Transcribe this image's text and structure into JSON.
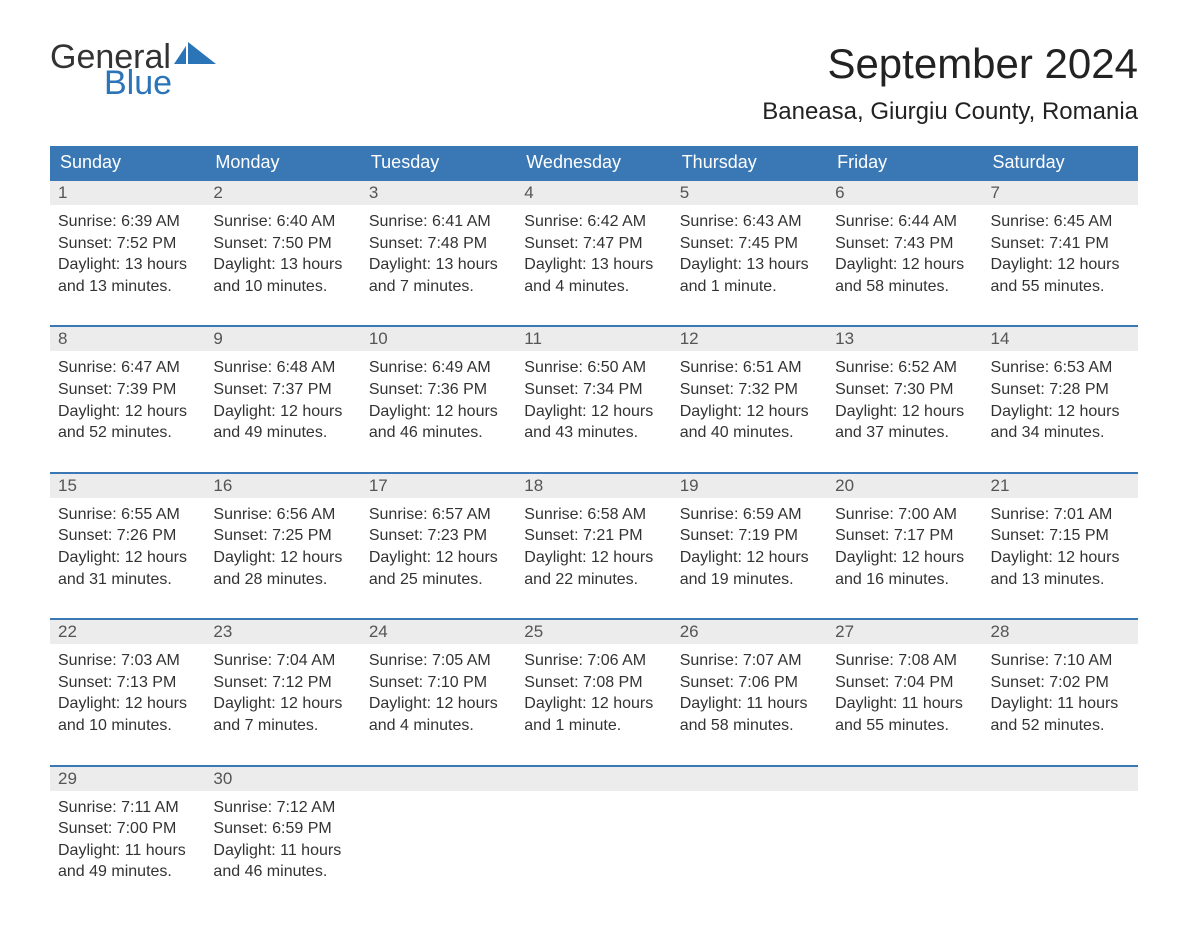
{
  "logo": {
    "word1": "General",
    "word2": "Blue",
    "flag_color": "#2b74b8"
  },
  "title": "September 2024",
  "location": "Baneasa, Giurgiu County, Romania",
  "colors": {
    "header_bg": "#3a78b5",
    "header_text": "#ffffff",
    "daynum_bg": "#ececec",
    "border": "#3a78b5"
  },
  "day_headers": [
    "Sunday",
    "Monday",
    "Tuesday",
    "Wednesday",
    "Thursday",
    "Friday",
    "Saturday"
  ],
  "weeks": [
    [
      {
        "n": "1",
        "sr": "Sunrise: 6:39 AM",
        "ss": "Sunset: 7:52 PM",
        "d1": "Daylight: 13 hours",
        "d2": "and 13 minutes."
      },
      {
        "n": "2",
        "sr": "Sunrise: 6:40 AM",
        "ss": "Sunset: 7:50 PM",
        "d1": "Daylight: 13 hours",
        "d2": "and 10 minutes."
      },
      {
        "n": "3",
        "sr": "Sunrise: 6:41 AM",
        "ss": "Sunset: 7:48 PM",
        "d1": "Daylight: 13 hours",
        "d2": "and 7 minutes."
      },
      {
        "n": "4",
        "sr": "Sunrise: 6:42 AM",
        "ss": "Sunset: 7:47 PM",
        "d1": "Daylight: 13 hours",
        "d2": "and 4 minutes."
      },
      {
        "n": "5",
        "sr": "Sunrise: 6:43 AM",
        "ss": "Sunset: 7:45 PM",
        "d1": "Daylight: 13 hours",
        "d2": "and 1 minute."
      },
      {
        "n": "6",
        "sr": "Sunrise: 6:44 AM",
        "ss": "Sunset: 7:43 PM",
        "d1": "Daylight: 12 hours",
        "d2": "and 58 minutes."
      },
      {
        "n": "7",
        "sr": "Sunrise: 6:45 AM",
        "ss": "Sunset: 7:41 PM",
        "d1": "Daylight: 12 hours",
        "d2": "and 55 minutes."
      }
    ],
    [
      {
        "n": "8",
        "sr": "Sunrise: 6:47 AM",
        "ss": "Sunset: 7:39 PM",
        "d1": "Daylight: 12 hours",
        "d2": "and 52 minutes."
      },
      {
        "n": "9",
        "sr": "Sunrise: 6:48 AM",
        "ss": "Sunset: 7:37 PM",
        "d1": "Daylight: 12 hours",
        "d2": "and 49 minutes."
      },
      {
        "n": "10",
        "sr": "Sunrise: 6:49 AM",
        "ss": "Sunset: 7:36 PM",
        "d1": "Daylight: 12 hours",
        "d2": "and 46 minutes."
      },
      {
        "n": "11",
        "sr": "Sunrise: 6:50 AM",
        "ss": "Sunset: 7:34 PM",
        "d1": "Daylight: 12 hours",
        "d2": "and 43 minutes."
      },
      {
        "n": "12",
        "sr": "Sunrise: 6:51 AM",
        "ss": "Sunset: 7:32 PM",
        "d1": "Daylight: 12 hours",
        "d2": "and 40 minutes."
      },
      {
        "n": "13",
        "sr": "Sunrise: 6:52 AM",
        "ss": "Sunset: 7:30 PM",
        "d1": "Daylight: 12 hours",
        "d2": "and 37 minutes."
      },
      {
        "n": "14",
        "sr": "Sunrise: 6:53 AM",
        "ss": "Sunset: 7:28 PM",
        "d1": "Daylight: 12 hours",
        "d2": "and 34 minutes."
      }
    ],
    [
      {
        "n": "15",
        "sr": "Sunrise: 6:55 AM",
        "ss": "Sunset: 7:26 PM",
        "d1": "Daylight: 12 hours",
        "d2": "and 31 minutes."
      },
      {
        "n": "16",
        "sr": "Sunrise: 6:56 AM",
        "ss": "Sunset: 7:25 PM",
        "d1": "Daylight: 12 hours",
        "d2": "and 28 minutes."
      },
      {
        "n": "17",
        "sr": "Sunrise: 6:57 AM",
        "ss": "Sunset: 7:23 PM",
        "d1": "Daylight: 12 hours",
        "d2": "and 25 minutes."
      },
      {
        "n": "18",
        "sr": "Sunrise: 6:58 AM",
        "ss": "Sunset: 7:21 PM",
        "d1": "Daylight: 12 hours",
        "d2": "and 22 minutes."
      },
      {
        "n": "19",
        "sr": "Sunrise: 6:59 AM",
        "ss": "Sunset: 7:19 PM",
        "d1": "Daylight: 12 hours",
        "d2": "and 19 minutes."
      },
      {
        "n": "20",
        "sr": "Sunrise: 7:00 AM",
        "ss": "Sunset: 7:17 PM",
        "d1": "Daylight: 12 hours",
        "d2": "and 16 minutes."
      },
      {
        "n": "21",
        "sr": "Sunrise: 7:01 AM",
        "ss": "Sunset: 7:15 PM",
        "d1": "Daylight: 12 hours",
        "d2": "and 13 minutes."
      }
    ],
    [
      {
        "n": "22",
        "sr": "Sunrise: 7:03 AM",
        "ss": "Sunset: 7:13 PM",
        "d1": "Daylight: 12 hours",
        "d2": "and 10 minutes."
      },
      {
        "n": "23",
        "sr": "Sunrise: 7:04 AM",
        "ss": "Sunset: 7:12 PM",
        "d1": "Daylight: 12 hours",
        "d2": "and 7 minutes."
      },
      {
        "n": "24",
        "sr": "Sunrise: 7:05 AM",
        "ss": "Sunset: 7:10 PM",
        "d1": "Daylight: 12 hours",
        "d2": "and 4 minutes."
      },
      {
        "n": "25",
        "sr": "Sunrise: 7:06 AM",
        "ss": "Sunset: 7:08 PM",
        "d1": "Daylight: 12 hours",
        "d2": "and 1 minute."
      },
      {
        "n": "26",
        "sr": "Sunrise: 7:07 AM",
        "ss": "Sunset: 7:06 PM",
        "d1": "Daylight: 11 hours",
        "d2": "and 58 minutes."
      },
      {
        "n": "27",
        "sr": "Sunrise: 7:08 AM",
        "ss": "Sunset: 7:04 PM",
        "d1": "Daylight: 11 hours",
        "d2": "and 55 minutes."
      },
      {
        "n": "28",
        "sr": "Sunrise: 7:10 AM",
        "ss": "Sunset: 7:02 PM",
        "d1": "Daylight: 11 hours",
        "d2": "and 52 minutes."
      }
    ],
    [
      {
        "n": "29",
        "sr": "Sunrise: 7:11 AM",
        "ss": "Sunset: 7:00 PM",
        "d1": "Daylight: 11 hours",
        "d2": "and 49 minutes."
      },
      {
        "n": "30",
        "sr": "Sunrise: 7:12 AM",
        "ss": "Sunset: 6:59 PM",
        "d1": "Daylight: 11 hours",
        "d2": "and 46 minutes."
      },
      null,
      null,
      null,
      null,
      null
    ]
  ]
}
